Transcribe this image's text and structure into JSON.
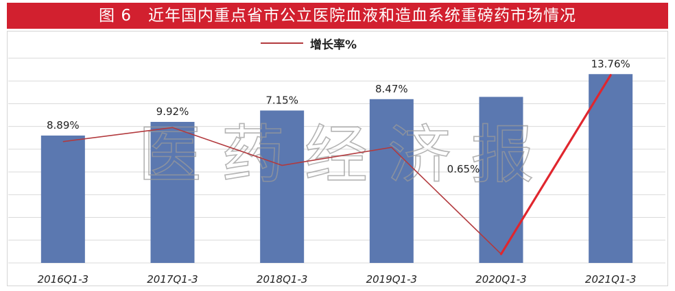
{
  "title": "图 6　近年国内重点省市公立医院血液和造血系统重磅药市场情况",
  "watermark": "医 药 经 济 报",
  "colors": {
    "title_bar": "#d2202f",
    "bar": "#5b78b0",
    "line": "#b2393d",
    "line_highlight": "#e0262e",
    "grid": "#d9d9d9"
  },
  "chart_data": {
    "type": "bar",
    "categories": [
      "2016Q1-3",
      "2017Q1-3",
      "2018Q1-3",
      "2019Q1-3",
      "2020Q1-3",
      "2021Q1-3"
    ],
    "grid": true,
    "legend_position": "top-center",
    "y_axis_labels_shown": false,
    "series": [
      {
        "type": "bar",
        "values": [
          56,
          62,
          67,
          72,
          73,
          83
        ]
      },
      {
        "type": "line",
        "name": "增长率%",
        "values": [
          8.89,
          9.92,
          7.15,
          8.47,
          0.65,
          13.76
        ],
        "labels": [
          "8.89%",
          "9.92%",
          "7.15%",
          "8.47%",
          "0.65%",
          "13.76%"
        ],
        "ylim": [
          0,
          15
        ]
      }
    ],
    "bar_ylim": [
      0,
      90
    ]
  }
}
